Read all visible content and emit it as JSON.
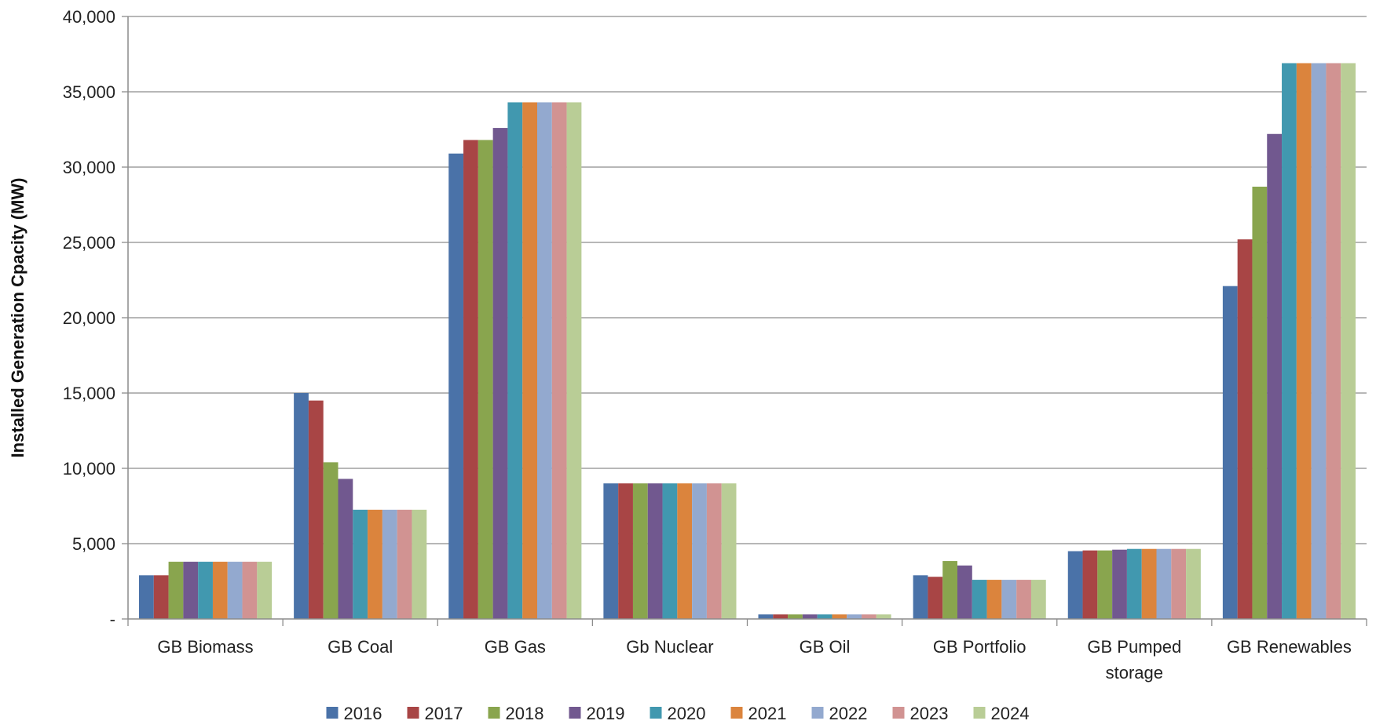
{
  "chart_data": {
    "type": "bar",
    "title": "",
    "xlabel": "",
    "ylabel": "Installed Generation Cpacity (MW)",
    "ylim": [
      0,
      40000
    ],
    "yticks": [
      {
        "value": 0,
        "label": "-"
      },
      {
        "value": 5000,
        "label": "5,000"
      },
      {
        "value": 10000,
        "label": "10,000"
      },
      {
        "value": 15000,
        "label": "15,000"
      },
      {
        "value": 20000,
        "label": "20,000"
      },
      {
        "value": 25000,
        "label": "25,000"
      },
      {
        "value": 30000,
        "label": "30,000"
      },
      {
        "value": 35000,
        "label": "35,000"
      },
      {
        "value": 40000,
        "label": "40,000"
      }
    ],
    "grid": true,
    "legend_position": "bottom",
    "categories": [
      [
        "GB Biomass"
      ],
      [
        "GB Coal"
      ],
      [
        "GB Gas"
      ],
      [
        "Gb Nuclear"
      ],
      [
        "GB Oil"
      ],
      [
        "GB Portfolio"
      ],
      [
        "GB Pumped",
        "storage"
      ],
      [
        "GB Renewables"
      ]
    ],
    "series": [
      {
        "name": "2016",
        "color": "#4a72a8",
        "values": [
          2900,
          15000,
          30900,
          9000,
          300,
          2900,
          4500,
          22100
        ]
      },
      {
        "name": "2017",
        "color": "#a84545",
        "values": [
          2900,
          14500,
          31800,
          9000,
          300,
          2800,
          4550,
          25200
        ]
      },
      {
        "name": "2018",
        "color": "#89a54e",
        "values": [
          3800,
          10400,
          31800,
          9000,
          300,
          3850,
          4550,
          28700
        ]
      },
      {
        "name": "2019",
        "color": "#71588f",
        "values": [
          3800,
          9300,
          32600,
          9000,
          300,
          3550,
          4600,
          32200
        ]
      },
      {
        "name": "2020",
        "color": "#4198af",
        "values": [
          3800,
          7250,
          34300,
          9000,
          300,
          2600,
          4650,
          36900
        ]
      },
      {
        "name": "2021",
        "color": "#db843d",
        "values": [
          3800,
          7250,
          34300,
          9000,
          300,
          2600,
          4650,
          36900
        ]
      },
      {
        "name": "2022",
        "color": "#93a9cf",
        "values": [
          3800,
          7250,
          34300,
          9000,
          300,
          2600,
          4650,
          36900
        ]
      },
      {
        "name": "2023",
        "color": "#d19392",
        "values": [
          3800,
          7250,
          34300,
          9000,
          300,
          2600,
          4650,
          36900
        ]
      },
      {
        "name": "2024",
        "color": "#b9cd96",
        "values": [
          3800,
          7250,
          34300,
          9000,
          300,
          2600,
          4650,
          36900
        ]
      }
    ]
  }
}
